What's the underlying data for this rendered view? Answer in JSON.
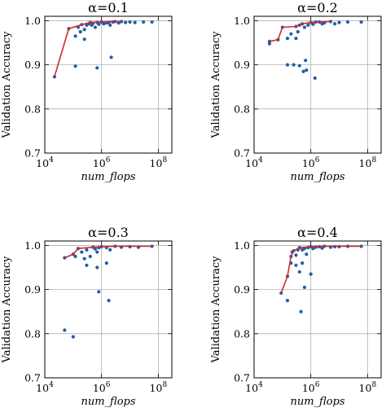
{
  "chart_data": [
    {
      "type": "scatter",
      "title": "α=0.1",
      "xlabel": "num_flops",
      "ylabel": "Validation Accuracy",
      "x_scale": "log",
      "xlim": [
        10000,
        300000000
      ],
      "ylim": [
        0.7,
        1.01
      ],
      "xticks": [
        10000,
        1000000,
        100000000
      ],
      "xtick_labels": [
        "10",
        "10",
        "10"
      ],
      "xtick_exponents": [
        "4",
        "6",
        "8"
      ],
      "yticks": [
        0.7,
        0.8,
        0.9,
        1.0
      ],
      "ytick_labels": [
        "0.7",
        "0.8",
        "0.9",
        "1.0"
      ],
      "grid": true,
      "pareto_color": "#d62728",
      "point_color": "#1f5fa8",
      "pareto_front": [
        {
          "x": 22000,
          "y": 0.873
        },
        {
          "x": 70000,
          "y": 0.982
        },
        {
          "x": 200000,
          "y": 0.991
        },
        {
          "x": 400000,
          "y": 0.996
        },
        {
          "x": 1000000,
          "y": 0.997
        },
        {
          "x": 3000000,
          "y": 0.998
        },
        {
          "x": 5000000,
          "y": 0.998
        }
      ],
      "points": [
        {
          "x": 22000,
          "y": 0.873
        },
        {
          "x": 70000,
          "y": 0.982
        },
        {
          "x": 120000,
          "y": 0.965
        },
        {
          "x": 150000,
          "y": 0.985
        },
        {
          "x": 180000,
          "y": 0.975
        },
        {
          "x": 200000,
          "y": 0.991
        },
        {
          "x": 250000,
          "y": 0.98
        },
        {
          "x": 300000,
          "y": 0.99
        },
        {
          "x": 350000,
          "y": 0.993
        },
        {
          "x": 250000,
          "y": 0.958
        },
        {
          "x": 120000,
          "y": 0.897
        },
        {
          "x": 700000,
          "y": 0.893
        },
        {
          "x": 2200000,
          "y": 0.917
        },
        {
          "x": 400000,
          "y": 0.996
        },
        {
          "x": 450000,
          "y": 0.99
        },
        {
          "x": 500000,
          "y": 0.994
        },
        {
          "x": 600000,
          "y": 0.985
        },
        {
          "x": 700000,
          "y": 0.996
        },
        {
          "x": 800000,
          "y": 0.992
        },
        {
          "x": 1000000,
          "y": 0.997
        },
        {
          "x": 1200000,
          "y": 0.993
        },
        {
          "x": 1500000,
          "y": 0.995
        },
        {
          "x": 1800000,
          "y": 0.996
        },
        {
          "x": 2000000,
          "y": 0.99
        },
        {
          "x": 2500000,
          "y": 0.997
        },
        {
          "x": 3000000,
          "y": 0.998
        },
        {
          "x": 4000000,
          "y": 0.995
        },
        {
          "x": 5000000,
          "y": 0.998
        },
        {
          "x": 7000000,
          "y": 0.996
        },
        {
          "x": 10000000,
          "y": 0.997
        },
        {
          "x": 15000000,
          "y": 0.996
        },
        {
          "x": 30000000,
          "y": 0.997
        },
        {
          "x": 60000000,
          "y": 0.997
        }
      ]
    },
    {
      "type": "scatter",
      "title": "α=0.2",
      "xlabel": "num_flops",
      "ylabel": "Validation Accuracy",
      "x_scale": "log",
      "xlim": [
        10000,
        300000000
      ],
      "ylim": [
        0.7,
        1.01
      ],
      "xticks": [
        10000,
        1000000,
        100000000
      ],
      "xtick_labels": [
        "10",
        "10",
        "10"
      ],
      "xtick_exponents": [
        "4",
        "6",
        "8"
      ],
      "yticks": [
        0.7,
        0.8,
        0.9,
        1.0
      ],
      "ytick_labels": [
        "0.7",
        "0.8",
        "0.9",
        "1.0"
      ],
      "grid": true,
      "pareto_color": "#d62728",
      "point_color": "#1f5fa8",
      "pareto_front": [
        {
          "x": 35000,
          "y": 0.953
        },
        {
          "x": 70000,
          "y": 0.957
        },
        {
          "x": 100000,
          "y": 0.985
        },
        {
          "x": 300000,
          "y": 0.987
        },
        {
          "x": 500000,
          "y": 0.993
        },
        {
          "x": 1000000,
          "y": 0.996
        },
        {
          "x": 2000000,
          "y": 0.997
        },
        {
          "x": 5000000,
          "y": 0.998
        }
      ],
      "points": [
        {
          "x": 35000,
          "y": 0.953
        },
        {
          "x": 35000,
          "y": 0.948
        },
        {
          "x": 70000,
          "y": 0.957
        },
        {
          "x": 100000,
          "y": 0.985
        },
        {
          "x": 150000,
          "y": 0.96
        },
        {
          "x": 200000,
          "y": 0.97
        },
        {
          "x": 300000,
          "y": 0.987
        },
        {
          "x": 300000,
          "y": 0.96
        },
        {
          "x": 350000,
          "y": 0.975
        },
        {
          "x": 400000,
          "y": 0.99
        },
        {
          "x": 500000,
          "y": 0.993
        },
        {
          "x": 600000,
          "y": 0.985
        },
        {
          "x": 800000,
          "y": 0.99
        },
        {
          "x": 1000000,
          "y": 0.996
        },
        {
          "x": 1200000,
          "y": 0.992
        },
        {
          "x": 1500000,
          "y": 0.997
        },
        {
          "x": 2000000,
          "y": 0.997
        },
        {
          "x": 2500000,
          "y": 0.993
        },
        {
          "x": 3000000,
          "y": 0.995
        },
        {
          "x": 5000000,
          "y": 0.998
        },
        {
          "x": 7000000,
          "y": 0.993
        },
        {
          "x": 10000000,
          "y": 0.996
        },
        {
          "x": 20000000,
          "y": 0.997
        },
        {
          "x": 60000000,
          "y": 0.997
        },
        {
          "x": 150000,
          "y": 0.9
        },
        {
          "x": 250000,
          "y": 0.9
        },
        {
          "x": 400000,
          "y": 0.898
        },
        {
          "x": 550000,
          "y": 0.885
        },
        {
          "x": 700000,
          "y": 0.888
        },
        {
          "x": 650000,
          "y": 0.91
        },
        {
          "x": 1400000,
          "y": 0.87
        }
      ]
    },
    {
      "type": "scatter",
      "title": "α=0.3",
      "xlabel": "num_flops",
      "ylabel": "Validation Accuracy",
      "x_scale": "log",
      "xlim": [
        10000,
        300000000
      ],
      "ylim": [
        0.7,
        1.01
      ],
      "xticks": [
        10000,
        1000000,
        100000000
      ],
      "xtick_labels": [
        "10",
        "10",
        "10"
      ],
      "xtick_exponents": [
        "4",
        "6",
        "8"
      ],
      "yticks": [
        0.7,
        0.8,
        0.9,
        1.0
      ],
      "ytick_labels": [
        "0.7",
        "0.8",
        "0.9",
        "1.0"
      ],
      "grid": true,
      "pareto_color": "#d62728",
      "point_color": "#1f5fa8",
      "pareto_front": [
        {
          "x": 50000,
          "y": 0.972
        },
        {
          "x": 100000,
          "y": 0.98
        },
        {
          "x": 150000,
          "y": 0.993
        },
        {
          "x": 500000,
          "y": 0.996
        },
        {
          "x": 1000000,
          "y": 0.997
        },
        {
          "x": 3000000,
          "y": 0.998
        },
        {
          "x": 60000000,
          "y": 0.998
        }
      ],
      "points": [
        {
          "x": 50000,
          "y": 0.972
        },
        {
          "x": 100000,
          "y": 0.98
        },
        {
          "x": 120000,
          "y": 0.975
        },
        {
          "x": 150000,
          "y": 0.993
        },
        {
          "x": 200000,
          "y": 0.985
        },
        {
          "x": 250000,
          "y": 0.97
        },
        {
          "x": 300000,
          "y": 0.99
        },
        {
          "x": 400000,
          "y": 0.975
        },
        {
          "x": 500000,
          "y": 0.996
        },
        {
          "x": 600000,
          "y": 0.992
        },
        {
          "x": 700000,
          "y": 0.985
        },
        {
          "x": 800000,
          "y": 0.995
        },
        {
          "x": 1000000,
          "y": 0.997
        },
        {
          "x": 1500000,
          "y": 0.995
        },
        {
          "x": 2000000,
          "y": 0.99
        },
        {
          "x": 3000000,
          "y": 0.998
        },
        {
          "x": 5000000,
          "y": 0.996
        },
        {
          "x": 10000000,
          "y": 0.997
        },
        {
          "x": 20000000,
          "y": 0.996
        },
        {
          "x": 60000000,
          "y": 0.998
        },
        {
          "x": 300000,
          "y": 0.955
        },
        {
          "x": 700000,
          "y": 0.95
        },
        {
          "x": 1500000,
          "y": 0.96
        },
        {
          "x": 800000,
          "y": 0.895
        },
        {
          "x": 1800000,
          "y": 0.875
        },
        {
          "x": 50000,
          "y": 0.808
        },
        {
          "x": 100000,
          "y": 0.793
        }
      ]
    },
    {
      "type": "scatter",
      "title": "α=0.4",
      "xlabel": "num_flops",
      "ylabel": "Validation Accuracy",
      "x_scale": "log",
      "xlim": [
        10000,
        300000000
      ],
      "ylim": [
        0.7,
        1.01
      ],
      "xticks": [
        10000,
        1000000,
        100000000
      ],
      "xtick_labels": [
        "10",
        "10",
        "10"
      ],
      "xtick_exponents": [
        "4",
        "6",
        "8"
      ],
      "yticks": [
        0.7,
        0.8,
        0.9,
        1.0
      ],
      "ytick_labels": [
        "0.7",
        "0.8",
        "0.9",
        "1.0"
      ],
      "grid": true,
      "pareto_color": "#d62728",
      "point_color": "#1f5fa8",
      "pareto_front": [
        {
          "x": 90000,
          "y": 0.892
        },
        {
          "x": 150000,
          "y": 0.93
        },
        {
          "x": 200000,
          "y": 0.975
        },
        {
          "x": 250000,
          "y": 0.988
        },
        {
          "x": 400000,
          "y": 0.995
        },
        {
          "x": 1000000,
          "y": 0.997
        },
        {
          "x": 3000000,
          "y": 0.998
        },
        {
          "x": 60000000,
          "y": 0.998
        }
      ],
      "points": [
        {
          "x": 90000,
          "y": 0.892
        },
        {
          "x": 150000,
          "y": 0.93
        },
        {
          "x": 200000,
          "y": 0.975
        },
        {
          "x": 200000,
          "y": 0.96
        },
        {
          "x": 220000,
          "y": 0.985
        },
        {
          "x": 250000,
          "y": 0.988
        },
        {
          "x": 300000,
          "y": 0.978
        },
        {
          "x": 350000,
          "y": 0.99
        },
        {
          "x": 400000,
          "y": 0.995
        },
        {
          "x": 500000,
          "y": 0.99
        },
        {
          "x": 600000,
          "y": 0.993
        },
        {
          "x": 700000,
          "y": 0.98
        },
        {
          "x": 800000,
          "y": 0.995
        },
        {
          "x": 1000000,
          "y": 0.997
        },
        {
          "x": 1200000,
          "y": 0.993
        },
        {
          "x": 1500000,
          "y": 0.996
        },
        {
          "x": 2000000,
          "y": 0.997
        },
        {
          "x": 2500000,
          "y": 0.994
        },
        {
          "x": 3000000,
          "y": 0.998
        },
        {
          "x": 5000000,
          "y": 0.996
        },
        {
          "x": 7000000,
          "y": 0.997
        },
        {
          "x": 10000000,
          "y": 0.997
        },
        {
          "x": 20000000,
          "y": 0.998
        },
        {
          "x": 60000000,
          "y": 0.998
        },
        {
          "x": 300000,
          "y": 0.955
        },
        {
          "x": 400000,
          "y": 0.94
        },
        {
          "x": 500000,
          "y": 0.96
        },
        {
          "x": 150000,
          "y": 0.875
        },
        {
          "x": 600000,
          "y": 0.905
        },
        {
          "x": 450000,
          "y": 0.85
        },
        {
          "x": 1000000,
          "y": 0.935
        }
      ]
    }
  ]
}
